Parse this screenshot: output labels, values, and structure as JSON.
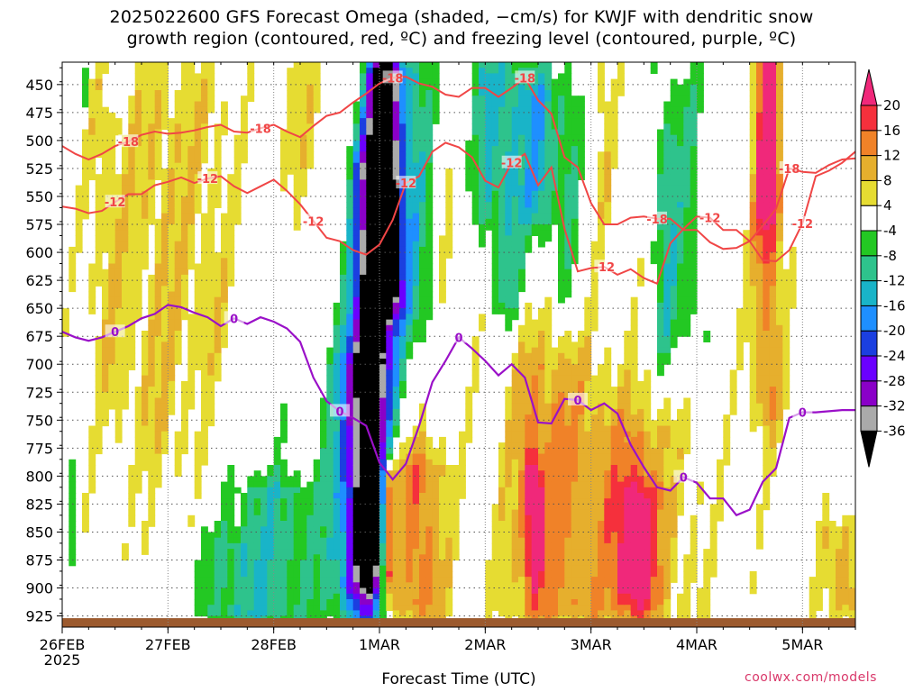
{
  "title_line1": "2025022600 GFS Forecast Omega (shaded, −cm/s) for KWJF with dendritic snow",
  "title_line2": "growth region (contoured, red, ºC) and freezing level (contoured, purple, ºC)",
  "credit": "coolwx.com/models",
  "chart_data": {
    "type": "heatmap",
    "title": "2025022600 GFS Forecast Omega (shaded, −cm/s) for KWJF with dendritic snow growth region (contoured, red, ºC) and freezing level (contoured, purple, ºC)",
    "xlabel": "Forecast Time (UTC)",
    "ylabel": "",
    "x_ticks": [
      "26FEB",
      "27FEB",
      "28FEB",
      "1MAR",
      "2MAR",
      "3MAR",
      "4MAR",
      "5MAR"
    ],
    "x_tick_sublabel": "2025",
    "x_range_hours": [
      0,
      180
    ],
    "y_ticks": [
      450,
      475,
      500,
      525,
      550,
      575,
      600,
      625,
      650,
      675,
      700,
      725,
      750,
      775,
      800,
      825,
      850,
      875,
      900,
      925
    ],
    "y_range": [
      430,
      935
    ],
    "y_inverted": true,
    "grid": true,
    "colorbar": {
      "levels": [
        -36,
        -32,
        -28,
        -24,
        -20,
        -16,
        -12,
        -8,
        -4,
        4,
        8,
        12,
        16,
        20
      ],
      "colors": [
        "#000000",
        "#aaaaaa",
        "#8a00c8",
        "#6a00ff",
        "#1b3fe0",
        "#1e8fff",
        "#19b4c8",
        "#2ec38c",
        "#23c823",
        "#ffffff",
        "#e6dc32",
        "#e6af2d",
        "#f08228",
        "#f5303c",
        "#f0287a"
      ]
    },
    "contour_labels": {
      "dendritic_red": [
        "-18",
        "-18",
        "-18",
        "-18",
        "-18",
        "-18",
        "-12",
        "-12",
        "-12",
        "-12",
        "-12",
        "-12",
        "-12",
        "-12"
      ],
      "freezing_purple": [
        "0",
        "0",
        "0",
        "0",
        "0",
        "0",
        "0"
      ]
    },
    "freezing_level": {
      "hours": [
        0,
        3,
        6,
        9,
        12,
        15,
        18,
        21,
        24,
        27,
        30,
        33,
        36,
        39,
        42,
        45,
        48,
        51,
        54,
        57,
        60,
        63,
        66,
        69,
        72,
        75,
        78,
        81,
        84,
        87,
        90,
        93,
        96,
        99,
        102,
        105,
        108,
        111,
        114,
        117,
        120,
        123,
        126,
        129,
        132,
        135,
        138,
        141,
        144,
        147,
        150,
        153,
        156,
        159,
        162,
        165,
        168,
        171,
        174,
        177,
        180
      ],
      "pressure": [
        671,
        676,
        679,
        676,
        671,
        666,
        659,
        655,
        647,
        649,
        654,
        658,
        666,
        659,
        664,
        658,
        662,
        668,
        680,
        712,
        733,
        742,
        748,
        755,
        788,
        803,
        789,
        755,
        716,
        697,
        676,
        686,
        697,
        710,
        700,
        712,
        752,
        753,
        731,
        732,
        741,
        735,
        744,
        772,
        792,
        810,
        813,
        801,
        806,
        820,
        820,
        835,
        830,
        805,
        793,
        748,
        743,
        743,
        742,
        741,
        741
      ]
    },
    "dendritic_minus12_upper": {
      "hours": [
        0,
        3,
        6,
        9,
        12,
        15,
        18,
        21,
        24,
        27,
        30,
        33,
        36,
        39,
        42,
        45,
        48,
        51,
        54,
        57,
        60,
        63,
        66,
        69,
        72,
        75,
        78,
        81,
        84,
        87,
        90,
        93,
        96,
        99,
        102,
        105,
        108,
        111,
        114,
        117,
        120,
        123,
        126,
        129,
        132,
        135,
        138,
        141,
        144,
        147,
        150,
        153,
        156,
        159,
        162,
        165,
        168,
        171,
        174,
        177,
        180
      ],
      "pressure": [
        559,
        561,
        565,
        563,
        555,
        548,
        548,
        540,
        537,
        533,
        538,
        534,
        532,
        541,
        547,
        541,
        535,
        545,
        557,
        572,
        587,
        590,
        598,
        602,
        593,
        571,
        538,
        532,
        510,
        502,
        506,
        515,
        536,
        542,
        520,
        512,
        540,
        524,
        579,
        617,
        614,
        613,
        620,
        615,
        623,
        628,
        592,
        579,
        568,
        569,
        580,
        580,
        590,
        607,
        608,
        598,
        574,
        532,
        527,
        520,
        510
      ]
    },
    "dendritic_minus18": {
      "hours": [
        0,
        3,
        6,
        9,
        12,
        15,
        18,
        21,
        24,
        27,
        30,
        33,
        36,
        39,
        42,
        45,
        48,
        51,
        54,
        57,
        60,
        63,
        66,
        69,
        72,
        75,
        78,
        81,
        84,
        87,
        90,
        93,
        96,
        99,
        102,
        105,
        108,
        111,
        114,
        117,
        120,
        123,
        126,
        129,
        132,
        135,
        138,
        141,
        144,
        147,
        150,
        153,
        156,
        159,
        162,
        165,
        168,
        171,
        174,
        177,
        180
      ],
      "pressure": [
        505,
        512,
        517,
        512,
        505,
        501,
        495,
        492,
        494,
        493,
        491,
        488,
        486,
        492,
        493,
        489,
        486,
        492,
        497,
        487,
        478,
        475,
        466,
        458,
        449,
        444,
        443,
        449,
        452,
        459,
        461,
        453,
        453,
        461,
        453,
        444,
        464,
        476,
        515,
        524,
        556,
        575,
        575,
        569,
        568,
        570,
        570,
        580,
        580,
        591,
        597,
        596,
        590,
        576,
        561,
        525,
        528,
        529,
        522,
        517,
        516
      ]
    }
  }
}
